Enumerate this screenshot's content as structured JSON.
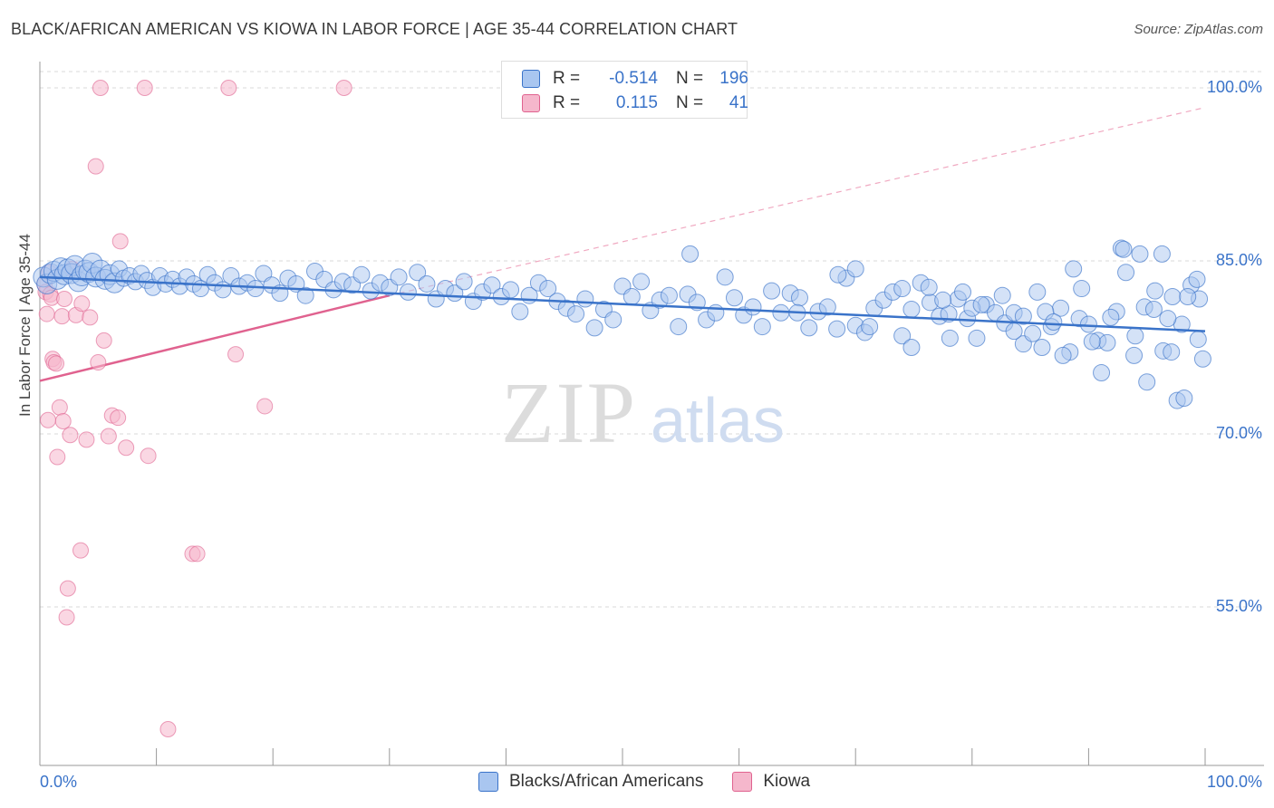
{
  "title": "BLACK/AFRICAN AMERICAN VS KIOWA IN LABOR FORCE | AGE 35-44 CORRELATION CHART",
  "source": "Source: ZipAtlas.com",
  "watermark": {
    "zip": "ZIP",
    "atlas": "atlas"
  },
  "legend": {
    "rows": [
      {
        "r_label": "R =",
        "r_value": "-0.514",
        "n_label": "N =",
        "n_value": "196"
      },
      {
        "r_label": "R =",
        "r_value": "0.115",
        "n_label": "N =",
        "n_value": "41"
      }
    ]
  },
  "bottom_legend": {
    "series1": "Blacks/African Americans",
    "series2": "Kiowa"
  },
  "chart_data": {
    "type": "scatter",
    "ylabel": "In Labor Force | Age 35-44",
    "xlim": [
      0,
      100
    ],
    "ylim": [
      40,
      103
    ],
    "x_tick_labels": [
      "0.0%",
      "100.0%"
    ],
    "y_ticks": [
      55,
      70,
      85,
      100
    ],
    "y_tick_labels": [
      "55.0%",
      "70.0%",
      "85.0%",
      "100.0%"
    ],
    "grid": true,
    "colors": {
      "blue": "#3a73c9",
      "blue_fill": "#a9c6f0",
      "pink": "#e0628f",
      "pink_fill": "#f5b7cc"
    },
    "series": [
      {
        "name": "Blacks/African Americans",
        "color": "#3a73c9",
        "trend": {
          "x": [
            0,
            100
          ],
          "y": [
            83.6,
            78.9
          ]
        },
        "points": [
          [
            0.3,
            83.6
          ],
          [
            0.6,
            83.0
          ],
          [
            0.9,
            83.9
          ],
          [
            1.2,
            84.1
          ],
          [
            1.5,
            83.4
          ],
          [
            1.8,
            84.4
          ],
          [
            2.1,
            83.8
          ],
          [
            2.4,
            84.3
          ],
          [
            2.7,
            83.9
          ],
          [
            3.0,
            84.6
          ],
          [
            3.3,
            83.2
          ],
          [
            3.6,
            83.7
          ],
          [
            3.9,
            84.2
          ],
          [
            4.2,
            84.0
          ],
          [
            4.5,
            84.8
          ],
          [
            4.8,
            83.6
          ],
          [
            5.2,
            84.2
          ],
          [
            5.6,
            83.4
          ],
          [
            6.0,
            83.8
          ],
          [
            6.4,
            83.1
          ],
          [
            6.8,
            84.3
          ],
          [
            7.2,
            83.5
          ],
          [
            7.7,
            83.7
          ],
          [
            8.2,
            83.2
          ],
          [
            8.7,
            83.9
          ],
          [
            9.2,
            83.3
          ],
          [
            9.7,
            82.7
          ],
          [
            10.3,
            83.7
          ],
          [
            10.8,
            83.0
          ],
          [
            11.4,
            83.4
          ],
          [
            12.0,
            82.8
          ],
          [
            12.6,
            83.6
          ],
          [
            13.2,
            83.0
          ],
          [
            13.8,
            82.6
          ],
          [
            14.4,
            83.8
          ],
          [
            15.0,
            83.1
          ],
          [
            15.7,
            82.5
          ],
          [
            16.4,
            83.7
          ],
          [
            17.1,
            82.8
          ],
          [
            17.8,
            83.1
          ],
          [
            18.5,
            82.6
          ],
          [
            19.2,
            83.9
          ],
          [
            19.9,
            82.9
          ],
          [
            20.6,
            82.2
          ],
          [
            21.3,
            83.5
          ],
          [
            22.0,
            83.0
          ],
          [
            22.8,
            82.0
          ],
          [
            23.6,
            84.1
          ],
          [
            24.4,
            83.4
          ],
          [
            25.2,
            82.5
          ],
          [
            26.0,
            83.2
          ],
          [
            26.8,
            82.9
          ],
          [
            27.6,
            83.8
          ],
          [
            28.4,
            82.4
          ],
          [
            29.2,
            83.1
          ],
          [
            30.0,
            82.7
          ],
          [
            30.8,
            83.6
          ],
          [
            31.6,
            82.3
          ],
          [
            32.4,
            84.0
          ],
          [
            33.2,
            83.0
          ],
          [
            34.0,
            81.7
          ],
          [
            34.8,
            82.6
          ],
          [
            35.6,
            82.2
          ],
          [
            36.4,
            83.2
          ],
          [
            37.2,
            81.5
          ],
          [
            38.0,
            82.3
          ],
          [
            38.8,
            82.9
          ],
          [
            39.6,
            81.9
          ],
          [
            40.4,
            82.5
          ],
          [
            41.2,
            80.6
          ],
          [
            42.0,
            82.0
          ],
          [
            42.8,
            83.1
          ],
          [
            43.6,
            82.6
          ],
          [
            44.4,
            81.5
          ],
          [
            45.2,
            80.9
          ],
          [
            46.0,
            80.4
          ],
          [
            46.8,
            81.7
          ],
          [
            47.6,
            79.2
          ],
          [
            48.4,
            80.8
          ],
          [
            49.2,
            79.9
          ],
          [
            50.0,
            82.8
          ],
          [
            50.8,
            81.9
          ],
          [
            51.6,
            83.2
          ],
          [
            52.4,
            80.7
          ],
          [
            53.2,
            81.6
          ],
          [
            54.0,
            82.0
          ],
          [
            54.8,
            79.3
          ],
          [
            55.6,
            82.1
          ],
          [
            56.4,
            81.4
          ],
          [
            57.2,
            79.9
          ],
          [
            58.0,
            80.5
          ],
          [
            58.8,
            83.6
          ],
          [
            59.6,
            81.8
          ],
          [
            60.4,
            80.3
          ],
          [
            61.2,
            81.0
          ],
          [
            62.0,
            79.3
          ],
          [
            62.8,
            82.4
          ],
          [
            63.6,
            80.5
          ],
          [
            64.4,
            82.2
          ],
          [
            65.2,
            81.8
          ],
          [
            66.0,
            79.2
          ],
          [
            66.8,
            80.6
          ],
          [
            67.6,
            81.0
          ],
          [
            68.4,
            79.1
          ],
          [
            69.2,
            83.5
          ],
          [
            70.0,
            79.4
          ],
          [
            70.8,
            78.8
          ],
          [
            71.6,
            80.9
          ],
          [
            72.4,
            81.6
          ],
          [
            73.2,
            82.3
          ],
          [
            74.0,
            78.5
          ],
          [
            74.8,
            77.5
          ],
          [
            75.6,
            83.1
          ],
          [
            76.4,
            81.4
          ],
          [
            77.2,
            80.2
          ],
          [
            78.0,
            80.4
          ],
          [
            78.8,
            81.7
          ],
          [
            79.6,
            80.0
          ],
          [
            80.4,
            78.3
          ],
          [
            81.2,
            81.2
          ],
          [
            82.0,
            80.5
          ],
          [
            82.8,
            79.6
          ],
          [
            83.6,
            80.5
          ],
          [
            84.4,
            77.8
          ],
          [
            85.2,
            78.7
          ],
          [
            86.0,
            77.5
          ],
          [
            86.8,
            79.3
          ],
          [
            87.6,
            80.9
          ],
          [
            88.4,
            77.1
          ],
          [
            89.2,
            80.0
          ],
          [
            90.0,
            79.5
          ],
          [
            90.8,
            78.1
          ],
          [
            91.6,
            77.9
          ],
          [
            92.4,
            80.6
          ],
          [
            93.2,
            84.0
          ],
          [
            94.0,
            78.5
          ],
          [
            94.8,
            81.0
          ],
          [
            95.6,
            80.8
          ],
          [
            96.4,
            77.2
          ],
          [
            97.2,
            81.9
          ],
          [
            98.0,
            79.5
          ],
          [
            98.8,
            82.9
          ],
          [
            99.5,
            81.7
          ],
          [
            55.8,
            85.6
          ],
          [
            65.0,
            80.5
          ],
          [
            68.5,
            83.8
          ],
          [
            70.0,
            84.3
          ],
          [
            71.2,
            79.3
          ],
          [
            74.0,
            82.6
          ],
          [
            74.8,
            80.8
          ],
          [
            76.3,
            82.7
          ],
          [
            77.5,
            81.6
          ],
          [
            78.1,
            78.3
          ],
          [
            79.2,
            82.3
          ],
          [
            80.0,
            80.9
          ],
          [
            80.8,
            81.2
          ],
          [
            82.6,
            82.0
          ],
          [
            83.6,
            78.9
          ],
          [
            84.4,
            80.2
          ],
          [
            85.6,
            82.3
          ],
          [
            86.3,
            80.6
          ],
          [
            87.0,
            79.7
          ],
          [
            87.8,
            76.8
          ],
          [
            88.7,
            84.3
          ],
          [
            89.4,
            82.6
          ],
          [
            90.3,
            78.0
          ],
          [
            91.1,
            75.3
          ],
          [
            91.9,
            80.1
          ],
          [
            92.8,
            86.1
          ],
          [
            93.9,
            76.8
          ],
          [
            95.0,
            74.5
          ],
          [
            96.3,
            85.6
          ],
          [
            97.1,
            77.1
          ],
          [
            97.6,
            72.9
          ],
          [
            98.5,
            81.9
          ],
          [
            99.3,
            83.4
          ],
          [
            99.8,
            76.5
          ],
          [
            93.0,
            86.0
          ],
          [
            94.4,
            85.6
          ],
          [
            95.7,
            82.4
          ],
          [
            96.8,
            80.0
          ],
          [
            98.2,
            73.1
          ],
          [
            99.4,
            78.2
          ]
        ]
      },
      {
        "name": "Kiowa",
        "color": "#e0628f",
        "trend": {
          "x": [
            0,
            30
          ],
          "y": [
            74.6,
            82.0
          ]
        },
        "trend_extension": {
          "x": [
            30,
            100
          ],
          "y": [
            82.0,
            98.3
          ]
        },
        "points": [
          [
            0.4,
            83.0
          ],
          [
            0.5,
            82.3
          ],
          [
            0.6,
            80.4
          ],
          [
            0.7,
            71.2
          ],
          [
            0.8,
            84.0
          ],
          [
            0.9,
            82.1
          ],
          [
            1.0,
            81.8
          ],
          [
            1.1,
            76.5
          ],
          [
            1.2,
            76.2
          ],
          [
            1.4,
            76.1
          ],
          [
            1.5,
            68.0
          ],
          [
            1.7,
            72.3
          ],
          [
            1.9,
            80.2
          ],
          [
            2.0,
            71.1
          ],
          [
            2.1,
            81.7
          ],
          [
            2.3,
            54.1
          ],
          [
            2.4,
            56.6
          ],
          [
            2.6,
            69.9
          ],
          [
            2.8,
            84.3
          ],
          [
            3.1,
            80.3
          ],
          [
            3.5,
            59.9
          ],
          [
            3.6,
            81.3
          ],
          [
            4.0,
            69.5
          ],
          [
            4.3,
            80.1
          ],
          [
            4.8,
            93.2
          ],
          [
            5.0,
            76.2
          ],
          [
            5.2,
            100.0
          ],
          [
            5.5,
            78.1
          ],
          [
            5.9,
            69.8
          ],
          [
            6.2,
            71.6
          ],
          [
            6.7,
            71.4
          ],
          [
            6.9,
            86.7
          ],
          [
            7.4,
            68.8
          ],
          [
            9.0,
            100.0
          ],
          [
            9.3,
            68.1
          ],
          [
            11.0,
            44.4
          ],
          [
            13.1,
            59.6
          ],
          [
            13.5,
            59.6
          ],
          [
            16.2,
            100.0
          ],
          [
            16.8,
            76.9
          ],
          [
            19.3,
            72.4
          ],
          [
            26.1,
            100.0
          ]
        ]
      }
    ]
  }
}
